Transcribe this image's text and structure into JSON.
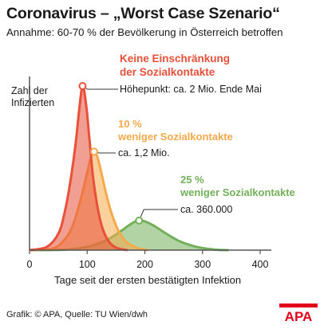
{
  "header": {
    "title": "Coronavirus – „Worst Case Szenario“",
    "subtitle": "Annahme: 60-70 % der Bevölkerung in Österreich betroffen"
  },
  "footer": {
    "source": "Grafik: © APA, Quelle: TU Wien/dwh",
    "logo_text": "APA"
  },
  "colors": {
    "red": "#e8503a",
    "orange": "#f5a94a",
    "green": "#72b05a",
    "axis": "#555555",
    "logo": "#e2001a"
  },
  "chart_data": {
    "type": "area",
    "xlabel": "Tage seit der ersten bestätigten Infektion",
    "ylabel": "Zahl der Infizierten",
    "xlim": [
      0,
      400
    ],
    "x_ticks": [
      0,
      100,
      200,
      300,
      400
    ],
    "grid": false,
    "series": [
      {
        "name": "Keine Einschränkung der Sozialkontakte",
        "color": "red",
        "peak_x": 92,
        "peak_value": 2000000,
        "annotation": "Höhepunkt: ca. 2 Mio. Ende Mai",
        "x": [
          0,
          30,
          50,
          60,
          70,
          80,
          86,
          92,
          98,
          104,
          110,
          118,
          126,
          136,
          150,
          170
        ],
        "values": [
          0,
          40000,
          200000,
          430000,
          800000,
          1300000,
          1700000,
          2000000,
          1780000,
          1350000,
          900000,
          520000,
          280000,
          120000,
          30000,
          0
        ]
      },
      {
        "name": "10 % weniger Sozialkontakte",
        "color": "orange",
        "peak_x": 112,
        "peak_value": 1200000,
        "annotation": "ca. 1,2 Mio.",
        "x": [
          0,
          40,
          60,
          75,
          90,
          100,
          106,
          112,
          118,
          126,
          136,
          150,
          165,
          185,
          205
        ],
        "values": [
          0,
          20000,
          120000,
          300000,
          650000,
          950000,
          1120000,
          1200000,
          1130000,
          900000,
          600000,
          300000,
          120000,
          30000,
          0
        ]
      },
      {
        "name": "25 % weniger Sozialkontakte",
        "color": "green",
        "peak_x": 190,
        "peak_value": 360000,
        "annotation": "ca. 360.000",
        "x": [
          0,
          60,
          100,
          130,
          150,
          170,
          182,
          190,
          200,
          215,
          235,
          260,
          290,
          320,
          345
        ],
        "values": [
          0,
          5000,
          40000,
          110000,
          190000,
          290000,
          345000,
          360000,
          350000,
          300000,
          210000,
          110000,
          40000,
          8000,
          0
        ]
      }
    ]
  }
}
